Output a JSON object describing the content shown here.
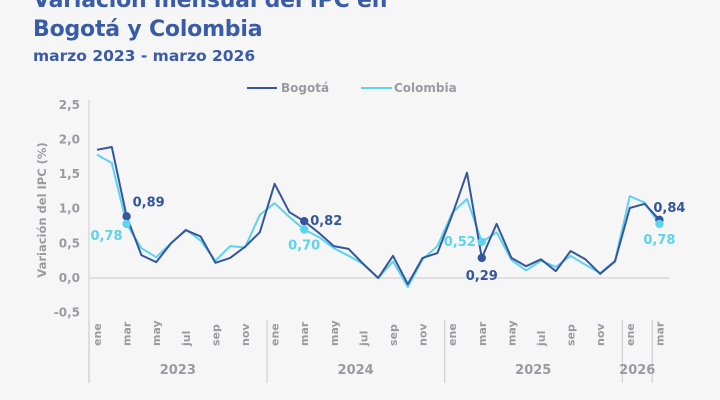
{
  "header": {
    "title_line1": "Variación mensual del IPC en",
    "title_line2": "Bogotá y Colombia",
    "subtitle": "marzo 2023 - marzo 2026"
  },
  "colors": {
    "bogota": "#34569c",
    "colombia": "#5dd3ee",
    "title": "#3a5ca6"
  },
  "chart_data": {
    "type": "line",
    "title": "Variación mensual del IPC en Bogotá y Colombia",
    "subtitle": "marzo 2023 - marzo 2026",
    "xlabel": "",
    "ylabel": "Variación del IPC (%)",
    "ylim": [
      -0.5,
      2.5
    ],
    "yticks": [
      "2,5",
      "2,0",
      "1,5",
      "1,0",
      "0,5",
      "0,0",
      "-0,5"
    ],
    "ytick_values": [
      2.5,
      2.0,
      1.5,
      1.0,
      0.5,
      0.0,
      -0.5
    ],
    "legend": [
      "Bogotá",
      "Colombia"
    ],
    "legend_position": "top",
    "month_labels": [
      "ene",
      "mar",
      "may",
      "jul",
      "sep",
      "nov",
      "ene",
      "mar",
      "may",
      "jul",
      "sep",
      "nov",
      "ene",
      "mar",
      "may",
      "jul",
      "sep",
      "nov",
      "ene",
      "mar"
    ],
    "month_label_index": [
      0,
      2,
      4,
      6,
      8,
      10,
      12,
      14,
      16,
      18,
      20,
      22,
      24,
      26,
      28,
      30,
      32,
      34,
      36,
      38
    ],
    "years": [
      {
        "label": "2023",
        "start": 0,
        "end": 12
      },
      {
        "label": "2024",
        "start": 12,
        "end": 24
      },
      {
        "label": "2025",
        "start": 24,
        "end": 36
      },
      {
        "label": "2026",
        "start": 36,
        "end": 39
      }
    ],
    "x": [
      "ene 2023",
      "feb 2023",
      "mar 2023",
      "abr 2023",
      "may 2023",
      "jun 2023",
      "jul 2023",
      "ago 2023",
      "sep 2023",
      "oct 2023",
      "nov 2023",
      "dic 2023",
      "ene 2024",
      "feb 2024",
      "mar 2024",
      "abr 2024",
      "may 2024",
      "jun 2024",
      "jul 2024",
      "ago 2024",
      "sep 2024",
      "oct 2024",
      "nov 2024",
      "dic 2024",
      "ene 2025",
      "feb 2025",
      "mar 2025",
      "abr 2025",
      "may 2025",
      "jun 2025",
      "jul 2025",
      "ago 2025",
      "sep 2025",
      "oct 2025",
      "nov 2025",
      "dic 2025",
      "ene 2026",
      "feb 2026",
      "mar 2026"
    ],
    "series": [
      {
        "name": "Bogotá",
        "values": [
          1.85,
          1.89,
          0.89,
          0.33,
          0.23,
          0.5,
          0.69,
          0.6,
          0.22,
          0.29,
          0.45,
          0.66,
          1.36,
          0.95,
          0.82,
          0.65,
          0.46,
          0.42,
          0.2,
          0.0,
          0.32,
          -0.09,
          0.29,
          0.36,
          0.91,
          1.52,
          0.29,
          0.78,
          0.29,
          0.17,
          0.27,
          0.1,
          0.39,
          0.27,
          0.06,
          0.24,
          1.01,
          1.07,
          0.84
        ]
      },
      {
        "name": "Colombia",
        "values": [
          1.78,
          1.66,
          0.78,
          0.43,
          0.3,
          0.5,
          0.7,
          0.54,
          0.25,
          0.46,
          0.44,
          0.91,
          1.08,
          0.88,
          0.7,
          0.59,
          0.43,
          0.32,
          0.2,
          0.0,
          0.24,
          -0.13,
          0.27,
          0.46,
          0.94,
          1.14,
          0.52,
          0.66,
          0.26,
          0.11,
          0.25,
          0.16,
          0.32,
          0.19,
          0.07,
          0.25,
          1.18,
          1.09,
          0.78
        ]
      }
    ],
    "annotations": [
      {
        "series": "Bogotá",
        "index": 2,
        "text": "0,89"
      },
      {
        "series": "Colombia",
        "index": 2,
        "text": "0,78"
      },
      {
        "series": "Bogotá",
        "index": 14,
        "text": "0,82"
      },
      {
        "series": "Colombia",
        "index": 14,
        "text": "0,70"
      },
      {
        "series": "Bogotá",
        "index": 26,
        "text": "0,29"
      },
      {
        "series": "Colombia",
        "index": 26,
        "text": "0,52"
      },
      {
        "series": "Bogotá",
        "index": 38,
        "text": "0,84"
      },
      {
        "series": "Colombia",
        "index": 38,
        "text": "0,78"
      }
    ]
  }
}
